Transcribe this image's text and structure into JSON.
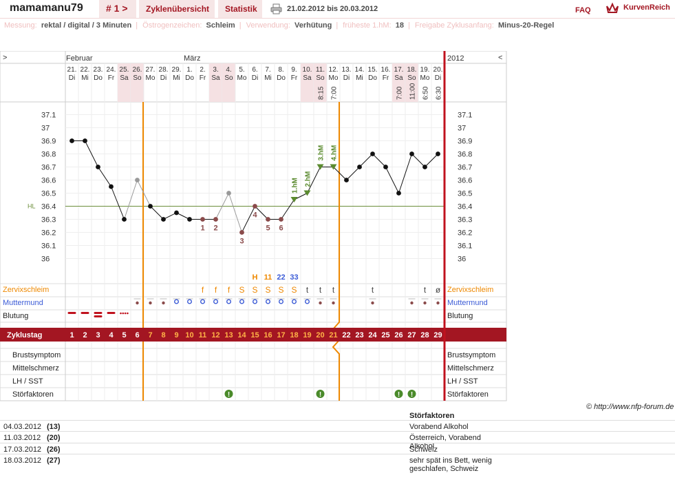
{
  "header": {
    "username": "mamamanu79",
    "cycle_nav": "# 1 >",
    "tabs": [
      "Zyklenübersicht",
      "Statistik"
    ],
    "date_range": "21.02.2012 bis 20.03.2012",
    "faq": "FAQ",
    "brand": "KurvenReich"
  },
  "info": [
    {
      "label": "Messung:",
      "value": "rektal / digital / 3 Minuten"
    },
    {
      "label": "Östrogenzeichen:",
      "value": "Schleim"
    },
    {
      "label": "Verwendung:",
      "value": "Verhütung"
    },
    {
      "label": "früheste 1.hM:",
      "value": "18"
    },
    {
      "label": "Freigabe Zyklusanfang:",
      "value": "Minus-20-Regel"
    }
  ],
  "chart": {
    "nav_left": ">",
    "nav_right": "<",
    "year": "2012",
    "months": [
      {
        "label": "Februar",
        "col": 0
      },
      {
        "label": "März",
        "col": 9
      }
    ],
    "days": [
      {
        "d": "21.",
        "w": "Di",
        "we": false
      },
      {
        "d": "22.",
        "w": "Mi",
        "we": false
      },
      {
        "d": "23.",
        "w": "Do",
        "we": false
      },
      {
        "d": "24.",
        "w": "Fr",
        "we": false
      },
      {
        "d": "25.",
        "w": "Sa",
        "we": true
      },
      {
        "d": "26.",
        "w": "So",
        "we": true
      },
      {
        "d": "27.",
        "w": "Mo",
        "we": false
      },
      {
        "d": "28.",
        "w": "Di",
        "we": false
      },
      {
        "d": "29.",
        "w": "Mi",
        "we": false
      },
      {
        "d": "1.",
        "w": "Do",
        "we": false
      },
      {
        "d": "2.",
        "w": "Fr",
        "we": false
      },
      {
        "d": "3.",
        "w": "Sa",
        "we": true
      },
      {
        "d": "4.",
        "w": "So",
        "we": true
      },
      {
        "d": "5.",
        "w": "Mo",
        "we": false
      },
      {
        "d": "6.",
        "w": "Di",
        "we": false
      },
      {
        "d": "7.",
        "w": "Mi",
        "we": false
      },
      {
        "d": "8.",
        "w": "Do",
        "we": false
      },
      {
        "d": "9.",
        "w": "Fr",
        "we": false
      },
      {
        "d": "10.",
        "w": "Sa",
        "we": true
      },
      {
        "d": "11.",
        "w": "So",
        "we": true
      },
      {
        "d": "12.",
        "w": "Mo",
        "we": false
      },
      {
        "d": "13.",
        "w": "Di",
        "we": false
      },
      {
        "d": "14.",
        "w": "Mi",
        "we": false
      },
      {
        "d": "15.",
        "w": "Do",
        "we": false
      },
      {
        "d": "16.",
        "w": "Fr",
        "we": false
      },
      {
        "d": "17.",
        "w": "Sa",
        "we": true
      },
      {
        "d": "18.",
        "w": "So",
        "we": true
      },
      {
        "d": "19.",
        "w": "Mo",
        "we": false
      },
      {
        "d": "20.",
        "w": "Di",
        "we": false
      }
    ],
    "times": [
      "",
      "",
      "",
      "",
      "",
      "",
      "",
      "",
      "",
      "",
      "",
      "",
      "",
      "",
      "",
      "",
      "",
      "",
      "",
      "8:15",
      "7:00",
      "",
      "",
      "",
      "",
      "7:00",
      "11:00",
      "6:50",
      "6:30"
    ],
    "y_ticks": [
      "37.1",
      "37",
      "36.9",
      "36.8",
      "36.7",
      "36.6",
      "36.5",
      "36.4",
      "36.3",
      "36.2",
      "36.1",
      "36"
    ],
    "hl_label": "HL",
    "row_labels": [
      "Zervixschleim",
      "Muttermund",
      "Blutung"
    ],
    "cycle_label": "Zyklustag",
    "bottom_labels": [
      "Brustsymptom",
      "Mittelschmerz",
      "LH / SST",
      "Störfaktoren"
    ],
    "cervix": [
      "",
      "",
      "",
      "",
      "",
      "",
      "",
      "",
      "",
      "",
      "f",
      "f",
      "f",
      "S",
      "S",
      "S",
      "S",
      "S",
      "t",
      "t",
      "t",
      "",
      "",
      "t",
      "",
      "",
      "",
      "t",
      "ø"
    ],
    "peak_marks": [
      {
        "col": 14,
        "text": "H"
      },
      {
        "col": 15,
        "text": "11"
      },
      {
        "col": 16,
        "text": "22"
      },
      {
        "col": 17,
        "text": "33"
      }
    ],
    "disturbance_days": [
      12,
      19,
      25,
      26
    ],
    "colors": {
      "accent": "#a31622",
      "orange": "#ee8800",
      "green": "#5a8a2e",
      "cover": "#b8172a"
    }
  },
  "chart_data": {
    "type": "line",
    "title": "",
    "ylabel": "",
    "ylim": [
      35.9,
      37.15
    ],
    "cycle_days": [
      1,
      2,
      3,
      4,
      5,
      6,
      7,
      8,
      9,
      10,
      11,
      12,
      13,
      14,
      15,
      16,
      17,
      18,
      19,
      20,
      21,
      22,
      23,
      24,
      25,
      26,
      27,
      28,
      29
    ],
    "temperatures": [
      36.9,
      36.9,
      36.7,
      36.55,
      36.3,
      36.6,
      36.4,
      36.3,
      36.35,
      36.3,
      36.3,
      36.3,
      36.5,
      36.2,
      36.4,
      36.3,
      36.3,
      36.45,
      36.5,
      36.7,
      36.7,
      36.6,
      36.7,
      36.8,
      36.7,
      36.5,
      36.8,
      36.7,
      36.8
    ],
    "excluded_days": [
      6,
      13
    ],
    "low_numbers": [
      {
        "day": 11,
        "label": "1"
      },
      {
        "day": 12,
        "label": "2"
      },
      {
        "day": 14,
        "label": "3"
      },
      {
        "day": 15,
        "label": "4"
      },
      {
        "day": 16,
        "label": "5"
      },
      {
        "day": 17,
        "label": "6"
      }
    ],
    "high_markers": [
      {
        "day": 18,
        "label": "1.hM"
      },
      {
        "day": 19,
        "label": "2.hM"
      },
      {
        "day": 20,
        "label": "3.hM"
      },
      {
        "day": 21,
        "label": "4.hM"
      }
    ],
    "coverline": 36.4
  },
  "footer": {
    "credit": "© http://www.nfp-forum.de",
    "notes_heading": "Störfaktoren",
    "notes": [
      {
        "date": "04.03.2012",
        "cycle": "(13)",
        "text": "Vorabend Alkohol"
      },
      {
        "date": "11.03.2012",
        "cycle": "(20)",
        "text": "Österreich, Vorabend Alkohol"
      },
      {
        "date": "17.03.2012",
        "cycle": "(26)",
        "text": "Schweiz"
      },
      {
        "date": "18.03.2012",
        "cycle": "(27)",
        "text": "sehr spät ins Bett, wenig geschlafen, Schweiz"
      }
    ]
  }
}
